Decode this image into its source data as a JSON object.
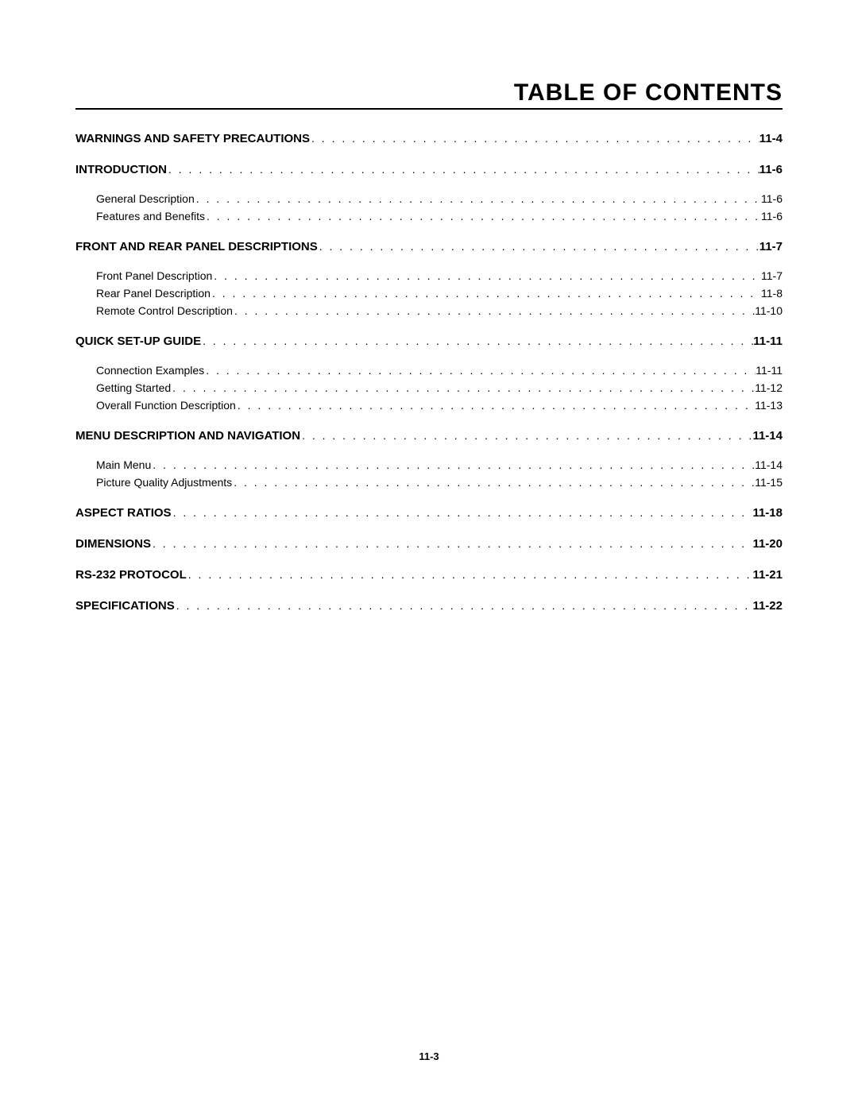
{
  "title": "TABLE OF CONTENTS",
  "footer": "11-3",
  "entries": [
    {
      "type": "section",
      "label": "WARNINGS AND SAFETY PRECAUTIONS",
      "page": "11-4"
    },
    {
      "type": "section",
      "label": "INTRODUCTION",
      "page": "11-6"
    },
    {
      "type": "sub-first",
      "label": "General Description",
      "page": "11-6"
    },
    {
      "type": "sub",
      "label": "Features and Benefits",
      "page": "11-6"
    },
    {
      "type": "section",
      "label": "FRONT AND REAR PANEL DESCRIPTIONS",
      "page": "11-7"
    },
    {
      "type": "sub-first",
      "label": "Front Panel Description",
      "page": "11-7"
    },
    {
      "type": "sub",
      "label": "Rear Panel Description",
      "page": "11-8"
    },
    {
      "type": "sub",
      "label": "Remote Control Description",
      "page": "11-10"
    },
    {
      "type": "section",
      "label": "QUICK SET-UP GUIDE",
      "page": "11-11"
    },
    {
      "type": "sub-first",
      "label": "Connection Examples",
      "page": "11-11"
    },
    {
      "type": "sub",
      "label": "Getting Started",
      "page": "11-12"
    },
    {
      "type": "sub",
      "label": "Overall Function Description",
      "page": "11-13"
    },
    {
      "type": "section",
      "label": "MENU DESCRIPTION AND NAVIGATION",
      "page": "11-14"
    },
    {
      "type": "sub-first",
      "label": "Main Menu",
      "page": "11-14"
    },
    {
      "type": "sub",
      "label": "Picture Quality Adjustments",
      "page": "11-15"
    },
    {
      "type": "section",
      "label": "ASPECT RATIOS",
      "page": "11-18"
    },
    {
      "type": "section",
      "label": "DIMENSIONS",
      "page": "11-20"
    },
    {
      "type": "section",
      "label": "RS-232 PROTOCOL",
      "page": "11-21"
    },
    {
      "type": "section",
      "label": "SPECIFICATIONS",
      "page": "11-22"
    }
  ]
}
